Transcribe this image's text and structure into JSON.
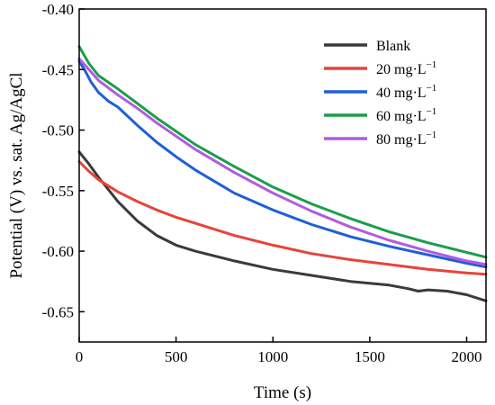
{
  "chart_data": {
    "type": "line",
    "title": "",
    "xlabel": "Time (s)",
    "ylabel": "Potential (V) vs. sat. Ag/AgCl",
    "xlim": [
      0,
      2100
    ],
    "ylim": [
      -0.675,
      -0.4
    ],
    "x_ticks": [
      0,
      500,
      1000,
      1500,
      2000
    ],
    "x_tick_labels": [
      "0",
      "500",
      "1000",
      "1500",
      "2000"
    ],
    "y_ticks": [
      -0.65,
      -0.6,
      -0.55,
      -0.5,
      -0.45,
      -0.4
    ],
    "y_tick_labels": [
      "-0.65",
      "-0.60",
      "-0.55",
      "-0.50",
      "-0.45",
      "-0.40"
    ],
    "grid": false,
    "legend_position": "top-right",
    "series": [
      {
        "name": "Blank",
        "legend_main": "Blank",
        "legend_sup": "",
        "color": "#3a3a3a",
        "x": [
          0,
          50,
          100,
          200,
          300,
          400,
          500,
          600,
          800,
          1000,
          1200,
          1400,
          1600,
          1700,
          1750,
          1800,
          1900,
          2000,
          2100
        ],
        "y": [
          -0.518,
          -0.528,
          -0.539,
          -0.559,
          -0.575,
          -0.587,
          -0.595,
          -0.6,
          -0.608,
          -0.615,
          -0.62,
          -0.625,
          -0.628,
          -0.631,
          -0.633,
          -0.632,
          -0.633,
          -0.636,
          -0.641
        ]
      },
      {
        "name": "20 mg·L−1",
        "legend_main": "20 mg·L",
        "legend_sup": "−1",
        "color": "#e8433a",
        "x": [
          0,
          50,
          100,
          200,
          300,
          400,
          500,
          600,
          800,
          1000,
          1200,
          1400,
          1600,
          1800,
          2000,
          2100
        ],
        "y": [
          -0.526,
          -0.534,
          -0.541,
          -0.551,
          -0.559,
          -0.566,
          -0.572,
          -0.577,
          -0.587,
          -0.595,
          -0.602,
          -0.607,
          -0.611,
          -0.615,
          -0.618,
          -0.619
        ]
      },
      {
        "name": "40 mg·L−1",
        "legend_main": "40 mg·L",
        "legend_sup": "−1",
        "color": "#1f5fd6",
        "x": [
          0,
          30,
          60,
          100,
          150,
          200,
          300,
          400,
          500,
          600,
          800,
          1000,
          1200,
          1400,
          1600,
          1800,
          2000,
          2100
        ],
        "y": [
          -0.443,
          -0.451,
          -0.46,
          -0.469,
          -0.476,
          -0.481,
          -0.496,
          -0.51,
          -0.522,
          -0.533,
          -0.552,
          -0.566,
          -0.578,
          -0.588,
          -0.596,
          -0.603,
          -0.61,
          -0.613
        ]
      },
      {
        "name": "60 mg·L−1",
        "legend_main": "60 mg·L",
        "legend_sup": "−1",
        "color": "#1a9e4a",
        "x": [
          0,
          50,
          100,
          200,
          300,
          400,
          500,
          600,
          800,
          1000,
          1200,
          1400,
          1600,
          1800,
          2000,
          2100
        ],
        "y": [
          -0.431,
          -0.445,
          -0.455,
          -0.466,
          -0.478,
          -0.49,
          -0.501,
          -0.512,
          -0.53,
          -0.547,
          -0.561,
          -0.573,
          -0.584,
          -0.593,
          -0.601,
          -0.605
        ]
      },
      {
        "name": "80 mg·L−1",
        "legend_main": "80 mg·L",
        "legend_sup": "−1",
        "color": "#b05ce0",
        "x": [
          0,
          50,
          100,
          200,
          300,
          400,
          500,
          600,
          800,
          1000,
          1200,
          1400,
          1600,
          1800,
          2000,
          2100
        ],
        "y": [
          -0.441,
          -0.45,
          -0.459,
          -0.471,
          -0.482,
          -0.494,
          -0.505,
          -0.516,
          -0.535,
          -0.552,
          -0.567,
          -0.58,
          -0.591,
          -0.6,
          -0.608,
          -0.611
        ]
      }
    ]
  }
}
